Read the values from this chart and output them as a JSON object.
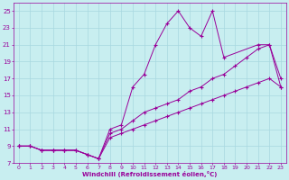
{
  "xlabel": "Windchill (Refroidissement éolien,°C)",
  "bg_color": "#c8eef0",
  "line_color": "#990099",
  "grid_color": "#a8d8e0",
  "xlim": [
    -0.5,
    23.5
  ],
  "ylim": [
    7,
    26
  ],
  "xticks": [
    0,
    1,
    2,
    3,
    4,
    5,
    6,
    7,
    8,
    9,
    10,
    11,
    12,
    13,
    14,
    15,
    16,
    17,
    18,
    19,
    20,
    21,
    22,
    23
  ],
  "yticks": [
    7,
    9,
    11,
    13,
    15,
    17,
    19,
    21,
    23,
    25
  ],
  "series": [
    {
      "x": [
        0,
        1,
        2,
        3,
        4,
        5,
        6,
        7,
        8,
        9,
        10,
        11,
        12,
        13,
        14,
        15,
        16,
        17,
        18,
        21,
        22,
        23
      ],
      "y": [
        9,
        9,
        8.5,
        8.5,
        8.5,
        8.5,
        8,
        7.5,
        11,
        11.5,
        16,
        17.5,
        21,
        23.5,
        25,
        23,
        22,
        25,
        19.5,
        21,
        21,
        16
      ]
    },
    {
      "x": [
        0,
        1,
        2,
        3,
        4,
        5,
        6,
        7,
        8,
        9,
        10,
        11,
        12,
        13,
        14,
        15,
        16,
        17,
        18,
        19,
        20,
        21,
        22,
        23
      ],
      "y": [
        9,
        9,
        8.5,
        8.5,
        8.5,
        8.5,
        8,
        7.5,
        10.5,
        11,
        12,
        13,
        13.5,
        14,
        14.5,
        15.5,
        16,
        17,
        17.5,
        18.5,
        19.5,
        20.5,
        21,
        17
      ]
    },
    {
      "x": [
        0,
        1,
        2,
        3,
        4,
        5,
        6,
        7,
        8,
        9,
        10,
        11,
        12,
        13,
        14,
        15,
        16,
        17,
        18,
        19,
        20,
        21,
        22,
        23
      ],
      "y": [
        9,
        9,
        8.5,
        8.5,
        8.5,
        8.5,
        8,
        7.5,
        10,
        10.5,
        11,
        11.5,
        12,
        12.5,
        13,
        13.5,
        14,
        14.5,
        15,
        15.5,
        16,
        16.5,
        17,
        16
      ]
    }
  ]
}
